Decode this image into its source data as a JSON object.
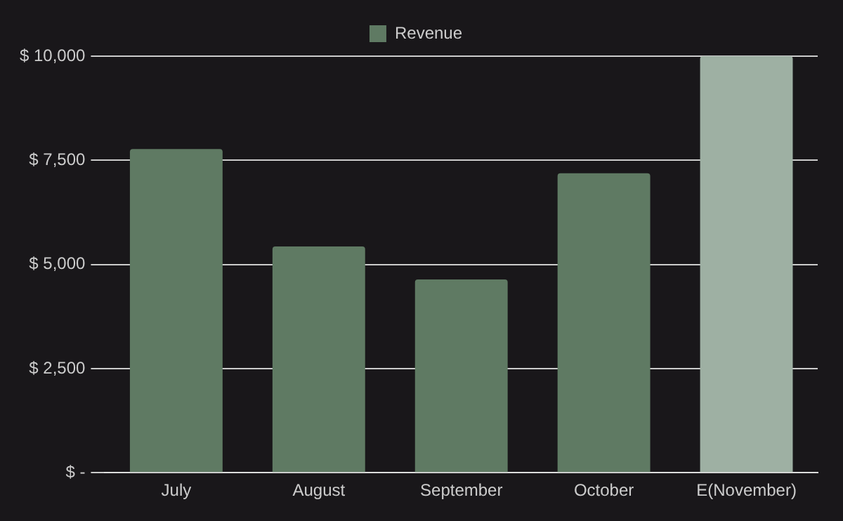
{
  "chart_data": {
    "type": "bar",
    "categories": [
      "July",
      "August",
      "September",
      "October",
      "E(November)"
    ],
    "series": [
      {
        "name": "Revenue",
        "color": "#5f7a63",
        "colors": [
          "#5f7a63",
          "#5f7a63",
          "#5f7a63",
          "#5f7a63",
          "#9eb0a3"
        ],
        "values": [
          7770,
          5430,
          4640,
          7190,
          10000
        ]
      }
    ],
    "ylim": [
      0,
      10000
    ],
    "yticks": [
      {
        "value": 0,
        "label": "$ -"
      },
      {
        "value": 2500,
        "label": "$ 2,500"
      },
      {
        "value": 5000,
        "label": "$ 5,000"
      },
      {
        "value": 7500,
        "label": "$ 7,500"
      },
      {
        "value": 10000,
        "label": "$ 10,000"
      }
    ],
    "grid": "y",
    "legend": "top"
  }
}
